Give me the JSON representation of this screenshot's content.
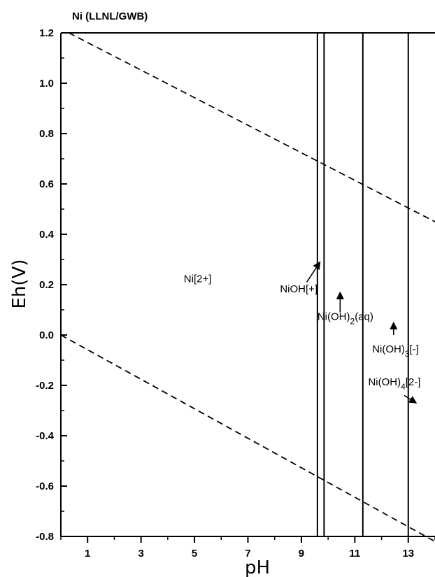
{
  "chart_data": {
    "type": "line",
    "title": "Ni (LLNL/GWB)",
    "xlabel": "pH",
    "ylabel": "Eh(V)",
    "xlim": [
      0,
      14
    ],
    "ylim": [
      -0.8,
      1.2
    ],
    "x_ticks": [
      1,
      3,
      5,
      7,
      9,
      11,
      13
    ],
    "x_tick_labels": [
      "1",
      "3",
      "5",
      "7",
      "9",
      "11",
      "13"
    ],
    "y_ticks": [
      1.2,
      1.0,
      0.8,
      0.6,
      0.4,
      0.2,
      0.0,
      -0.2,
      -0.4,
      -0.6,
      -0.8
    ],
    "y_tick_labels": [
      "1.2",
      "1.0",
      "0.8",
      "0.6",
      "0.4",
      "0.2",
      "0.0",
      "-0.2",
      "-0.4",
      "-0.6",
      "-0.8"
    ],
    "grid": false,
    "boundaries": [
      {
        "name": "",
        "style": "solid",
        "x": [
          9.6,
          9.6
        ],
        "y": [
          -0.8,
          1.2
        ]
      },
      {
        "name": "",
        "style": "solid",
        "x": [
          9.85,
          9.85
        ],
        "y": [
          -0.8,
          1.2
        ]
      },
      {
        "name": "",
        "style": "solid",
        "x": [
          11.3,
          11.3
        ],
        "y": [
          -0.8,
          1.2
        ]
      },
      {
        "name": "",
        "style": "solid",
        "x": [
          13.0,
          13.0
        ],
        "y": [
          -0.8,
          1.2
        ]
      },
      {
        "name": "",
        "style": "solid",
        "x": [
          0,
          14
        ],
        "y": [
          1.2,
          1.2
        ]
      }
    ],
    "water_limits": [
      {
        "name": "",
        "style": "dashed",
        "x": [
          0.3,
          14
        ],
        "y": [
          1.2,
          0.45
        ]
      },
      {
        "name": "",
        "style": "dashed",
        "x": [
          0,
          14
        ],
        "y": [
          0.0,
          -0.82
        ]
      }
    ],
    "annotations": [
      {
        "main": "Ni[2+]",
        "sub": "",
        "tail": "",
        "x": 4.6,
        "y": 0.21,
        "arrow": null
      },
      {
        "main": "NiOH[+]",
        "sub": "",
        "tail": "",
        "x": 8.2,
        "y": 0.17,
        "arrow": [
          9.2,
          0.21,
          9.7,
          0.29
        ]
      },
      {
        "main": "Ni(OH)",
        "sub": "2",
        "tail": "(aq)",
        "x": 9.6,
        "y": 0.06,
        "arrow": [
          10.45,
          0.09,
          10.45,
          0.17
        ]
      },
      {
        "main": "Ni(OH)",
        "sub": "3",
        "tail": "[-]",
        "x": 11.65,
        "y": -0.07,
        "arrow": [
          12.45,
          -0.0,
          12.45,
          0.05
        ]
      },
      {
        "main": "Ni(OH)",
        "sub": "4",
        "tail": "[2-]",
        "x": 11.5,
        "y": -0.2,
        "arrow": [
          12.85,
          -0.24,
          13.3,
          -0.27
        ]
      }
    ]
  }
}
